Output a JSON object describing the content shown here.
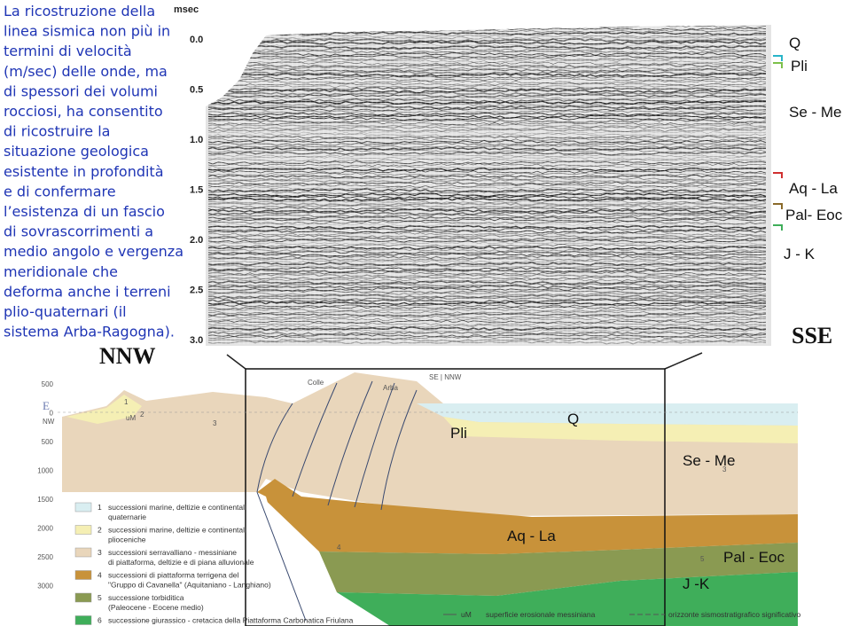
{
  "intro": {
    "lines": [
      "La ricostruzione della",
      "linea sismica non più in",
      "termini di velocità",
      "(m/sec) delle onde, ma",
      "di spessori dei  volumi",
      "rocciosi, ha consentito",
      "di ricostruire la",
      "situazione geologica",
      "esistente in profondità",
      "e di confermare",
      "l’esistenza di un fascio",
      "di sovrascorrimenti a",
      "medio angolo e vergenza",
      "meridionale che",
      "deforma anche i terreni",
      "plio-quaternari (il",
      "sistema Arba-Ragogna)."
    ]
  },
  "seismic": {
    "unit": "msec",
    "time_labels": [
      "0.0",
      "0.5",
      "1.0",
      "1.5",
      "2.0",
      "2.5",
      "3.0"
    ],
    "horizons": [
      "Q",
      "Pli",
      "Se - Me",
      "Aq - La",
      "Pal- Eoc",
      "J - K"
    ],
    "left_end": "NNW",
    "right_end": "SSE"
  },
  "section": {
    "depth_labels": [
      "500",
      "0",
      "500",
      "1000",
      "1500",
      "2000",
      "2500",
      "3000"
    ],
    "left_letter": "E",
    "left_dir": "NW",
    "places": [
      "Colle",
      "Arba"
    ],
    "junction": "SE | NNW",
    "unit_marks": [
      "1",
      "uM",
      "2",
      "3",
      "4",
      "5",
      "3"
    ],
    "horizons": [
      "Pli",
      "Q",
      "Se - Me",
      "Aq - La",
      "Pal - Eoc",
      "J -K"
    ],
    "legend": [
      {
        "number": "1",
        "lines": [
          "successioni marine, deltizie e continentali",
          "quaternarie"
        ]
      },
      {
        "number": "2",
        "lines": [
          "successioni marine, deltizie e continentali",
          "plioceniche"
        ]
      },
      {
        "number": "3",
        "lines": [
          "successioni serravalliano - messiniane",
          "di piattaforma, deltizie e di piana alluvionale"
        ]
      },
      {
        "number": "4",
        "lines": [
          "successioni di piattaforma terrigena del",
          "\"Gruppo di Cavanella\" (Aquitaniano - Langhiano)"
        ]
      },
      {
        "number": "5",
        "lines": [
          "successione torbiditica",
          "(Paleocene - Eocene medio)"
        ]
      },
      {
        "number": "6",
        "lines": [
          "successione giurassico - cretacica della Piattaforma Carbonatica Friulana"
        ]
      }
    ],
    "symbols": [
      {
        "mark": "uM",
        "text": "superficie erosionale messiniana"
      },
      {
        "text": "orizzonte sismostratigrafico significativo"
      }
    ]
  }
}
